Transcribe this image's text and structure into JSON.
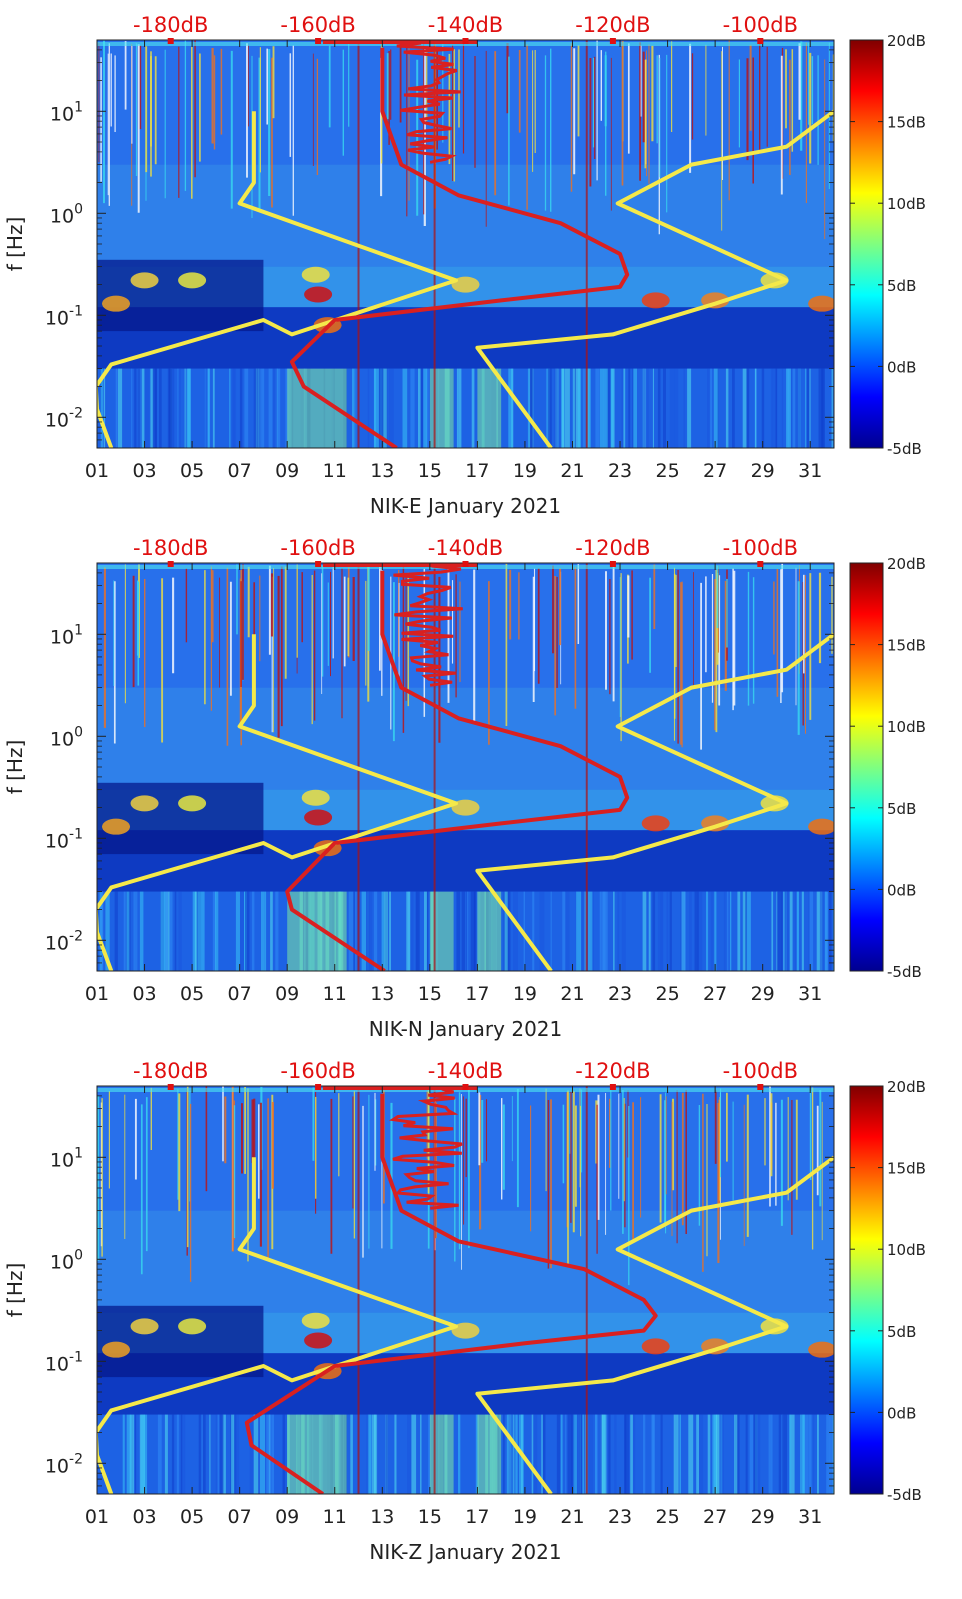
{
  "chart_data": [
    {
      "type": "heatmap",
      "xlabel": "NIK-E January 2021",
      "ylabel": "f [Hz]",
      "x_ticks": [
        "01",
        "03",
        "05",
        "07",
        "09",
        "11",
        "13",
        "15",
        "17",
        "19",
        "21",
        "23",
        "25",
        "27",
        "29",
        "31"
      ],
      "xlim": [
        1,
        32
      ],
      "y_scale": "log",
      "ylim": [
        0.005,
        50
      ],
      "y_ticks": [
        {
          "value": 0.01,
          "base": "10",
          "exp": "-2"
        },
        {
          "value": 0.1,
          "base": "10",
          "exp": "-1"
        },
        {
          "value": 1,
          "base": "10",
          "exp": "0"
        },
        {
          "value": 10,
          "base": "10",
          "exp": "1"
        }
      ],
      "top_axis_labels": [
        "-180dB",
        "-160dB",
        "-140dB",
        "-120dB",
        "-100dB"
      ],
      "top_axis_range_db": [
        -190,
        -90
      ],
      "colorbar": {
        "ticks": [
          "20dB",
          "15dB",
          "10dB",
          "5dB",
          "0dB",
          "-5dB"
        ],
        "range": [
          -5,
          20
        ],
        "colormap": "jet"
      },
      "series": [
        {
          "color": "#f5e94a",
          "x": [
            7.6,
            7.6,
            7.0,
            16.1,
            9.2,
            8.0,
            1.6,
            0.95,
            1.0,
            1.6
          ],
          "y": [
            10,
            2,
            1.25,
            0.22,
            0.065,
            0.09,
            0.033,
            0.02,
            0.012,
            0.005
          ]
        },
        {
          "color": "#f5e94a",
          "x": [
            32.0,
            30.0,
            26.0,
            22.9,
            30.0,
            27.0,
            22.7,
            17.0,
            20.1
          ],
          "y": [
            10,
            4.5,
            3.0,
            1.25,
            0.22,
            0.13,
            0.065,
            0.048,
            0.005
          ]
        },
        {
          "color": "#d92020",
          "x": [
            13.0,
            13.0,
            13.8,
            16.2,
            20.5,
            23.0,
            23.3,
            23.0,
            18.0,
            11.0,
            9.2,
            9.7,
            13.6
          ],
          "y": [
            42,
            10,
            3.0,
            1.5,
            0.8,
            0.4,
            0.25,
            0.19,
            0.14,
            0.09,
            0.035,
            0.02,
            0.005
          ]
        }
      ]
    },
    {
      "type": "heatmap",
      "xlabel": "NIK-N January 2021",
      "ylabel": "f [Hz]",
      "x_ticks": [
        "01",
        "03",
        "05",
        "07",
        "09",
        "11",
        "13",
        "15",
        "17",
        "19",
        "21",
        "23",
        "25",
        "27",
        "29",
        "31"
      ],
      "xlim": [
        1,
        32
      ],
      "y_scale": "log",
      "ylim": [
        0.005,
        50
      ],
      "y_ticks": [
        {
          "value": 0.01,
          "base": "10",
          "exp": "-2"
        },
        {
          "value": 0.1,
          "base": "10",
          "exp": "-1"
        },
        {
          "value": 1,
          "base": "10",
          "exp": "0"
        },
        {
          "value": 10,
          "base": "10",
          "exp": "1"
        }
      ],
      "top_axis_labels": [
        "-180dB",
        "-160dB",
        "-140dB",
        "-120dB",
        "-100dB"
      ],
      "top_axis_range_db": [
        -190,
        -90
      ],
      "colorbar": {
        "ticks": [
          "20dB",
          "15dB",
          "10dB",
          "5dB",
          "0dB",
          "-5dB"
        ],
        "range": [
          -5,
          20
        ],
        "colormap": "jet"
      },
      "series": [
        {
          "color": "#f5e94a",
          "x": [
            7.6,
            7.6,
            7.0,
            16.1,
            9.2,
            8.0,
            1.6,
            0.95,
            1.0,
            1.6
          ],
          "y": [
            10,
            2,
            1.25,
            0.22,
            0.065,
            0.09,
            0.033,
            0.02,
            0.012,
            0.005
          ]
        },
        {
          "color": "#f5e94a",
          "x": [
            32.0,
            30.0,
            26.0,
            22.9,
            30.0,
            27.0,
            22.7,
            17.0,
            20.1
          ],
          "y": [
            10,
            4.5,
            3.0,
            1.25,
            0.22,
            0.13,
            0.065,
            0.048,
            0.005
          ]
        },
        {
          "color": "#d92020",
          "x": [
            13.0,
            13.0,
            13.8,
            16.2,
            20.5,
            23.0,
            23.3,
            23.0,
            18.0,
            11.0,
            9.0,
            9.2,
            13.1
          ],
          "y": [
            42,
            10,
            3.0,
            1.5,
            0.8,
            0.4,
            0.25,
            0.19,
            0.14,
            0.09,
            0.03,
            0.02,
            0.005
          ]
        }
      ]
    },
    {
      "type": "heatmap",
      "xlabel": "NIK-Z January 2021",
      "ylabel": "f [Hz]",
      "x_ticks": [
        "01",
        "03",
        "05",
        "07",
        "09",
        "11",
        "13",
        "15",
        "17",
        "19",
        "21",
        "23",
        "25",
        "27",
        "29",
        "31"
      ],
      "xlim": [
        1,
        32
      ],
      "y_scale": "log",
      "ylim": [
        0.005,
        50
      ],
      "y_ticks": [
        {
          "value": 0.01,
          "base": "10",
          "exp": "-2"
        },
        {
          "value": 0.1,
          "base": "10",
          "exp": "-1"
        },
        {
          "value": 1,
          "base": "10",
          "exp": "0"
        },
        {
          "value": 10,
          "base": "10",
          "exp": "1"
        }
      ],
      "top_axis_labels": [
        "-180dB",
        "-160dB",
        "-140dB",
        "-120dB",
        "-100dB"
      ],
      "top_axis_range_db": [
        -190,
        -90
      ],
      "colorbar": {
        "ticks": [
          "20dB",
          "15dB",
          "10dB",
          "5dB",
          "0dB",
          "-5dB"
        ],
        "range": [
          -5,
          20
        ],
        "colormap": "jet"
      },
      "series": [
        {
          "color": "#f5e94a",
          "x": [
            7.6,
            7.6,
            7.0,
            16.1,
            9.2,
            8.0,
            1.6,
            0.95,
            1.0,
            1.6
          ],
          "y": [
            10,
            2,
            1.25,
            0.22,
            0.065,
            0.09,
            0.033,
            0.02,
            0.012,
            0.005
          ]
        },
        {
          "color": "#f5e94a",
          "x": [
            32.0,
            30.0,
            26.0,
            22.9,
            30.0,
            27.0,
            22.7,
            17.0,
            20.1
          ],
          "y": [
            10,
            4.5,
            3.0,
            1.25,
            0.22,
            0.13,
            0.065,
            0.048,
            0.005
          ]
        },
        {
          "color": "#d92020",
          "x": [
            13.0,
            13.0,
            13.8,
            16.2,
            21.5,
            24.0,
            24.5,
            24.0,
            19.0,
            11.0,
            7.3,
            7.5,
            10.5
          ],
          "y": [
            42,
            10,
            3.0,
            1.5,
            0.8,
            0.4,
            0.28,
            0.2,
            0.15,
            0.09,
            0.025,
            0.015,
            0.005
          ]
        }
      ]
    }
  ]
}
